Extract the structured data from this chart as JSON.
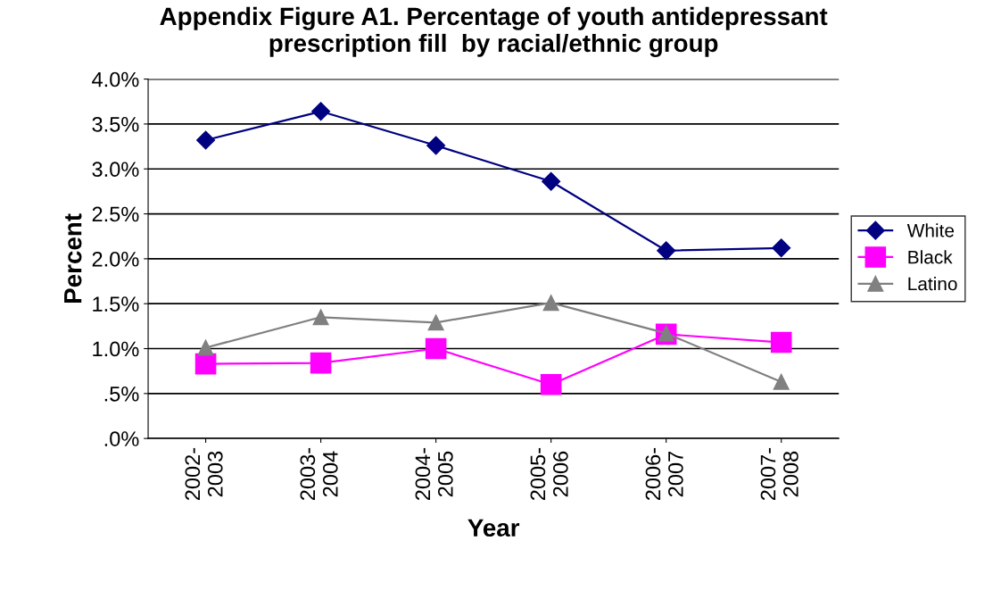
{
  "chart_data": {
    "type": "line",
    "title": "Appendix Figure A1. Percentage of youth antidepressant\nprescription fill  by racial/ethnic group",
    "xlabel": "Year",
    "ylabel": "Percent",
    "categories": [
      "2002-\n2003",
      "2003-\n2004",
      "2004-\n2005",
      "2005-\n2006",
      "2006-\n2007",
      "2007-\n2008"
    ],
    "series": [
      {
        "name": "White",
        "color": "#000080",
        "marker": "diamond",
        "values": [
          3.32,
          3.64,
          3.26,
          2.86,
          2.09,
          2.12
        ]
      },
      {
        "name": "Black",
        "color": "#ff00ff",
        "marker": "square",
        "values": [
          0.83,
          0.84,
          1.0,
          0.6,
          1.16,
          1.07
        ]
      },
      {
        "name": "Latino",
        "color": "#808080",
        "marker": "triangle",
        "values": [
          1.01,
          1.35,
          1.29,
          1.51,
          1.17,
          0.63
        ]
      }
    ],
    "ylim": [
      0,
      4
    ],
    "yticks": [
      {
        "value": 0,
        "label": ".0%"
      },
      {
        "value": 0.5,
        "label": ".5%"
      },
      {
        "value": 1,
        "label": "1.0%"
      },
      {
        "value": 1.5,
        "label": "1.5%"
      },
      {
        "value": 2,
        "label": "2.0%"
      },
      {
        "value": 2.5,
        "label": "2.5%"
      },
      {
        "value": 3,
        "label": "3.0%"
      },
      {
        "value": 3.5,
        "label": "3.5%"
      },
      {
        "value": 4,
        "label": "4.0%"
      }
    ],
    "grid": "y",
    "legend": "right",
    "line_style": "solid"
  }
}
